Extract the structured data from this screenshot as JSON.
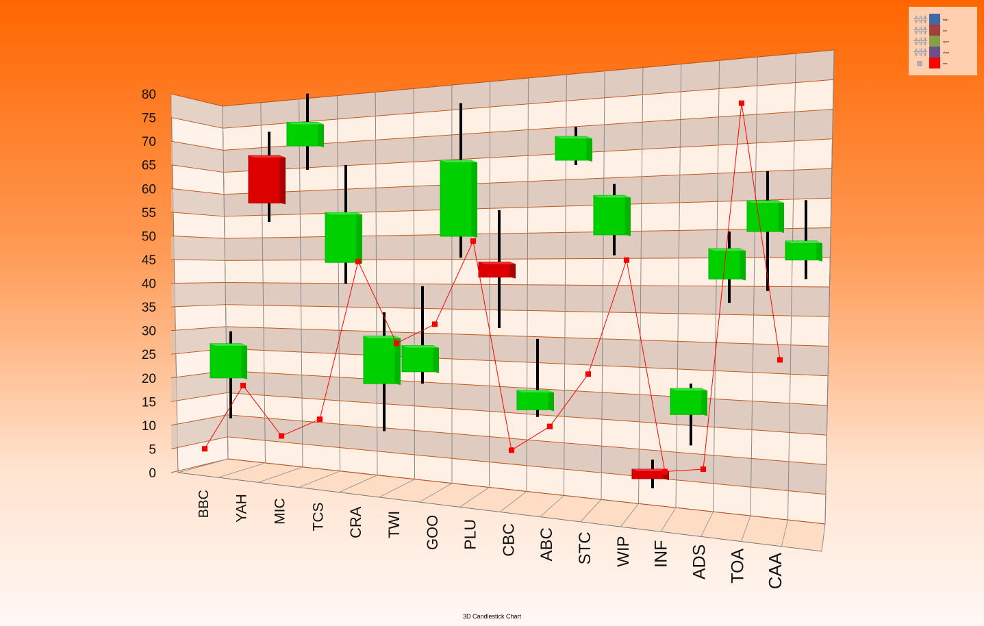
{
  "chart_data": {
    "type": "candlestick-3d",
    "title": "3D Candlestick Chart",
    "xlabel": "",
    "ylabel": "",
    "ylim": [
      0,
      80
    ],
    "yticks": [
      0,
      5,
      10,
      15,
      20,
      25,
      30,
      35,
      40,
      45,
      50,
      55,
      60,
      65,
      70,
      75,
      80
    ],
    "categories": [
      "BBC",
      "YAH",
      "MIC",
      "TCS",
      "CRA",
      "TWI",
      "GOO",
      "PLU",
      "CBC",
      "ABC",
      "STC",
      "WIP",
      "INF",
      "ADS",
      "TOA",
      "CAA"
    ],
    "series": [
      {
        "name": "high",
        "values": [
          30,
          72,
          80,
          65,
          34,
          39.5,
          78,
          55.5,
          28.4,
          73,
          61,
          3,
          19,
          51,
          63.7,
          57.6
        ]
      },
      {
        "name": "low",
        "values": [
          11.7,
          53,
          64,
          40,
          9,
          19,
          45.5,
          30.7,
          12,
          65,
          46,
          -3,
          6,
          36,
          38.5,
          41
        ]
      },
      {
        "name": "open",
        "values": [
          20.2,
          67,
          69,
          44.5,
          19,
          21.5,
          50,
          44.6,
          13.5,
          66,
          50.3,
          1,
          12.5,
          41,
          51,
          45
        ]
      },
      {
        "name": "close",
        "values": [
          27.4,
          57,
          74,
          55,
          29,
          27,
          66,
          41.4,
          17.6,
          71,
          58.6,
          -1,
          18,
          47.4,
          57.5,
          49
        ]
      },
      {
        "name": "mtx",
        "values": [
          5.3,
          18.6,
          8,
          11.5,
          44.7,
          27.5,
          31.5,
          49,
          5,
          10,
          21,
          45,
          0.5,
          1,
          78,
          24
        ]
      }
    ],
    "legend": {
      "placement": "top-right",
      "entries": [
        "high",
        "low",
        "open",
        "close",
        "mtx"
      ]
    },
    "colors": {
      "up": "#00d000",
      "down": "#dd0000",
      "line": "#ff0000",
      "high": "#3f6aa8",
      "low": "#a3403d",
      "open": "#86a04a",
      "close": "#6b5189",
      "mtx": "#ff0000"
    },
    "grid": true
  }
}
